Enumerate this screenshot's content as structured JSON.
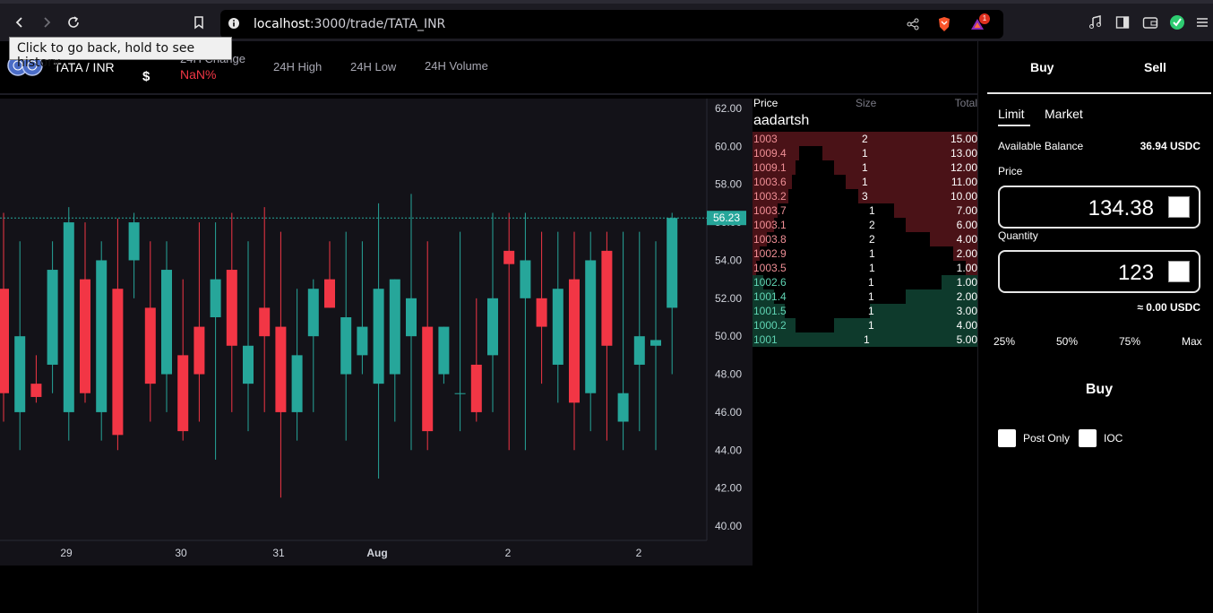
{
  "browser": {
    "url_host": "localhost",
    "url_path": ":3000/trade/TATA_INR",
    "tooltip": "Click to go back, hold to see history",
    "notification_count": "1"
  },
  "market": {
    "pair": "TATA / INR",
    "price": "$",
    "change_label": "24H Change",
    "change_value": "NaN%",
    "high_label": "24H High",
    "low_label": "24H Low",
    "volume_label": "24H Volume"
  },
  "orderbook": {
    "headers": {
      "price": "Price",
      "size": "Size",
      "total": "Total"
    },
    "user": "aadartsh",
    "asks": [
      {
        "price": "1003",
        "size": "2",
        "total": "15.00",
        "depth": 1.0
      },
      {
        "price": "1009.4",
        "size": "1",
        "total": "13.00",
        "depth": 0.867
      },
      {
        "price": "1009.1",
        "size": "1",
        "total": "12.00",
        "depth": 0.8
      },
      {
        "price": "1003.6",
        "size": "1",
        "total": "11.00",
        "depth": 0.733
      },
      {
        "price": "1003.2",
        "size": "3",
        "total": "10.00",
        "depth": 0.667
      },
      {
        "price": "1003.7",
        "size": "1",
        "total": "7.00",
        "depth": 0.467
      },
      {
        "price": "1003.1",
        "size": "2",
        "total": "6.00",
        "depth": 0.4
      },
      {
        "price": "1003.8",
        "size": "2",
        "total": "4.00",
        "depth": 0.267
      },
      {
        "price": "1002.9",
        "size": "1",
        "total": "2.00",
        "depth": 0.133
      },
      {
        "price": "1003.5",
        "size": "1",
        "total": "1.00",
        "depth": 0.067
      }
    ],
    "bids": [
      {
        "price": "1002.6",
        "size": "1",
        "total": "1.00",
        "depth": 0.2
      },
      {
        "price": "1001.4",
        "size": "1",
        "total": "2.00",
        "depth": 0.4
      },
      {
        "price": "1001.5",
        "size": "1",
        "total": "3.00",
        "depth": 0.6
      },
      {
        "price": "1000.2",
        "size": "1",
        "total": "4.00",
        "depth": 0.8
      },
      {
        "price": "1001",
        "size": "1",
        "total": "5.00",
        "depth": 1.0
      }
    ]
  },
  "panel": {
    "buy_tab": "Buy",
    "sell_tab": "Sell",
    "limit_tab": "Limit",
    "market_tab": "Market",
    "balance_label": "Available Balance",
    "balance_value": "36.94 USDC",
    "price_label": "Price",
    "price_value": "134.38",
    "quantity_label": "Quantity",
    "quantity_value": "123",
    "approx": "≈ 0.00 USDC",
    "pct": [
      "25%",
      "50%",
      "75%",
      "Max"
    ],
    "buy_button": "Buy",
    "post_only": "Post Only",
    "ioc": "IOC"
  },
  "chart_data": {
    "type": "candlestick",
    "y_ticks": [
      "62.00",
      "60.00",
      "58.00",
      "56.00",
      "54.00",
      "52.00",
      "50.00",
      "48.00",
      "46.00",
      "44.00",
      "42.00",
      "40.00"
    ],
    "x_ticks": [
      "29",
      "30",
      "31",
      "Aug",
      "2",
      "2"
    ],
    "last_price": "56.23",
    "colors": {
      "up": "#26a69a",
      "down": "#f23645",
      "bg": "#131218"
    },
    "candles": [
      {
        "o": 52.5,
        "h": 56.5,
        "l": 45.5,
        "c": 47.0
      },
      {
        "o": 46.0,
        "h": 55.0,
        "l": 44.0,
        "c": 50.0
      },
      {
        "o": 47.5,
        "h": 49.0,
        "l": 46.5,
        "c": 46.8
      },
      {
        "o": 48.5,
        "h": 55.0,
        "l": 47.0,
        "c": 53.5
      },
      {
        "o": 46.0,
        "h": 56.8,
        "l": 44.5,
        "c": 56.0
      },
      {
        "o": 53.0,
        "h": 56.0,
        "l": 46.5,
        "c": 47.0
      },
      {
        "o": 46.0,
        "h": 55.0,
        "l": 44.5,
        "c": 54.0
      },
      {
        "o": 52.5,
        "h": 56.2,
        "l": 44.0,
        "c": 44.8
      },
      {
        "o": 54.0,
        "h": 56.5,
        "l": 52.0,
        "c": 56.0
      },
      {
        "o": 51.5,
        "h": 55.0,
        "l": 45.5,
        "c": 47.5
      },
      {
        "o": 48.0,
        "h": 55.0,
        "l": 46.0,
        "c": 53.5
      },
      {
        "o": 49.0,
        "h": 53.0,
        "l": 44.5,
        "c": 45.0
      },
      {
        "o": 50.5,
        "h": 56.0,
        "l": 45.5,
        "c": 48.0
      },
      {
        "o": 51.0,
        "h": 56.0,
        "l": 43.5,
        "c": 53.0
      },
      {
        "o": 53.5,
        "h": 56.5,
        "l": 46.0,
        "c": 49.5
      },
      {
        "o": 47.5,
        "h": 55.0,
        "l": 45.0,
        "c": 49.5
      },
      {
        "o": 51.5,
        "h": 56.8,
        "l": 46.0,
        "c": 50.0
      },
      {
        "o": 50.5,
        "h": 55.5,
        "l": 41.5,
        "c": 46.0
      },
      {
        "o": 46.0,
        "h": 52.5,
        "l": 44.5,
        "c": 49.0
      },
      {
        "o": 50.0,
        "h": 53.0,
        "l": 46.0,
        "c": 52.5
      },
      {
        "o": 53.0,
        "h": 55.0,
        "l": 51.5,
        "c": 51.5
      },
      {
        "o": 48.0,
        "h": 55.5,
        "l": 44.5,
        "c": 51.0
      },
      {
        "o": 49.0,
        "h": 55.0,
        "l": 48.0,
        "c": 50.5
      },
      {
        "o": 47.5,
        "h": 57.0,
        "l": 42.5,
        "c": 52.5
      },
      {
        "o": 48.0,
        "h": 53.0,
        "l": 45.5,
        "c": 53.0
      },
      {
        "o": 50.0,
        "h": 57.5,
        "l": 44.0,
        "c": 52.0
      },
      {
        "o": 50.5,
        "h": 55.0,
        "l": 44.0,
        "c": 45.0
      },
      {
        "o": 48.0,
        "h": 50.5,
        "l": 47.5,
        "c": 50.5
      },
      {
        "o": 47.0,
        "h": 55.5,
        "l": 45.0,
        "c": 47.0
      },
      {
        "o": 48.5,
        "h": 52.0,
        "l": 45.5,
        "c": 46.0
      },
      {
        "o": 49.0,
        "h": 56.5,
        "l": 46.0,
        "c": 52.0
      },
      {
        "o": 54.5,
        "h": 56.5,
        "l": 44.0,
        "c": 53.8
      },
      {
        "o": 52.0,
        "h": 56.5,
        "l": 44.0,
        "c": 54.0
      },
      {
        "o": 52.0,
        "h": 55.5,
        "l": 47.5,
        "c": 50.5
      },
      {
        "o": 48.5,
        "h": 55.5,
        "l": 46.5,
        "c": 52.5
      },
      {
        "o": 53.0,
        "h": 55.5,
        "l": 44.0,
        "c": 46.5
      },
      {
        "o": 47.0,
        "h": 55.5,
        "l": 45.0,
        "c": 54.0
      },
      {
        "o": 54.5,
        "h": 55.5,
        "l": 44.5,
        "c": 49.5
      },
      {
        "o": 45.5,
        "h": 55.5,
        "l": 44.0,
        "c": 47.0
      },
      {
        "o": 48.5,
        "h": 55.5,
        "l": 45.0,
        "c": 50.0
      },
      {
        "o": 49.5,
        "h": 55.0,
        "l": 44.0,
        "c": 49.8
      },
      {
        "o": 51.5,
        "h": 56.5,
        "l": 48.0,
        "c": 56.23
      }
    ]
  }
}
